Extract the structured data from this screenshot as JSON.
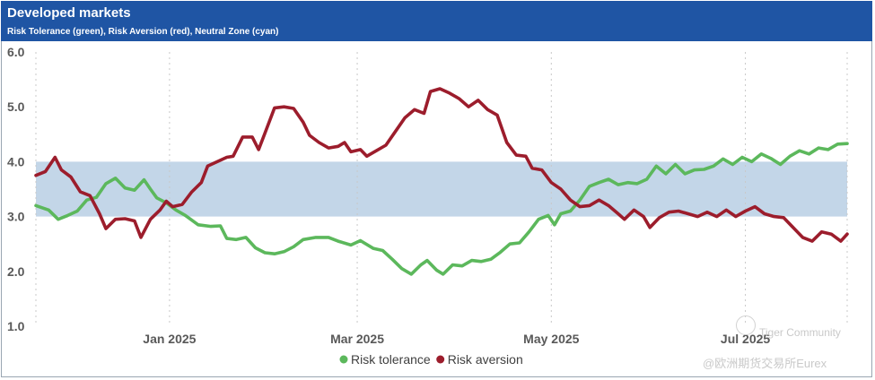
{
  "header": {
    "title": "Developed markets",
    "subtitle": "Risk Tolerance (green), Risk Aversion (red), Neutral Zone (cyan)"
  },
  "watermarks": {
    "community": "Tiger Community",
    "source": "@欧洲期货交易所Eurex"
  },
  "colors": {
    "header_bg": "#1f55a4",
    "tolerance": "#5cb85c",
    "aversion": "#9c1d2c",
    "neutral_band": "#c3d6e8"
  },
  "chart_data": {
    "type": "line",
    "title": "Developed markets",
    "subtitle": "Risk Tolerance (green), Risk Aversion (red), Neutral Zone (cyan)",
    "x_unit": "days since 2024-11-20",
    "xlim": [
      0,
      255
    ],
    "ylim": [
      1.0,
      6.0
    ],
    "yticks": [
      1.0,
      2.0,
      3.0,
      4.0,
      5.0,
      6.0
    ],
    "ytick_labels": [
      "1.0",
      "2.0",
      "3.0",
      "4.0",
      "5.0",
      "6.0"
    ],
    "xticks": [
      {
        "label": "Jan 2025",
        "x": 42
      },
      {
        "label": "Mar 2025",
        "x": 101
      },
      {
        "label": "May 2025",
        "x": 162
      },
      {
        "label": "Jul 2025",
        "x": 223
      }
    ],
    "neutral_zone": [
      3.0,
      4.0
    ],
    "grid": "vertical dotted",
    "legend": "bottom-center",
    "series": [
      {
        "name": "Risk tolerance",
        "color": "#5cb85c",
        "points": [
          [
            0,
            3.2
          ],
          [
            4,
            3.12
          ],
          [
            7,
            2.95
          ],
          [
            10,
            3.02
          ],
          [
            13,
            3.1
          ],
          [
            16,
            3.3
          ],
          [
            19,
            3.35
          ],
          [
            22,
            3.6
          ],
          [
            25,
            3.7
          ],
          [
            28,
            3.52
          ],
          [
            31,
            3.48
          ],
          [
            34,
            3.67
          ],
          [
            36,
            3.5
          ],
          [
            38,
            3.34
          ],
          [
            41,
            3.25
          ],
          [
            44,
            3.12
          ],
          [
            47,
            3.02
          ],
          [
            51,
            2.85
          ],
          [
            55,
            2.82
          ],
          [
            58,
            2.83
          ],
          [
            60,
            2.6
          ],
          [
            63,
            2.58
          ],
          [
            66,
            2.62
          ],
          [
            69,
            2.43
          ],
          [
            72,
            2.34
          ],
          [
            75,
            2.32
          ],
          [
            78,
            2.36
          ],
          [
            81,
            2.45
          ],
          [
            84,
            2.58
          ],
          [
            88,
            2.62
          ],
          [
            92,
            2.62
          ],
          [
            95,
            2.55
          ],
          [
            99,
            2.48
          ],
          [
            102,
            2.56
          ],
          [
            106,
            2.42
          ],
          [
            109,
            2.38
          ],
          [
            112,
            2.22
          ],
          [
            115,
            2.05
          ],
          [
            118,
            1.95
          ],
          [
            121,
            2.12
          ],
          [
            123,
            2.2
          ],
          [
            126,
            2.02
          ],
          [
            128,
            1.95
          ],
          [
            131,
            2.12
          ],
          [
            134,
            2.1
          ],
          [
            137,
            2.2
          ],
          [
            140,
            2.18
          ],
          [
            143,
            2.22
          ],
          [
            146,
            2.35
          ],
          [
            149,
            2.5
          ],
          [
            152,
            2.52
          ],
          [
            155,
            2.72
          ],
          [
            158,
            2.95
          ],
          [
            161,
            3.02
          ],
          [
            163,
            2.85
          ],
          [
            165,
            3.05
          ],
          [
            168,
            3.1
          ],
          [
            171,
            3.3
          ],
          [
            174,
            3.55
          ],
          [
            177,
            3.62
          ],
          [
            180,
            3.68
          ],
          [
            183,
            3.58
          ],
          [
            186,
            3.62
          ],
          [
            189,
            3.6
          ],
          [
            192,
            3.68
          ],
          [
            195,
            3.92
          ],
          [
            198,
            3.78
          ],
          [
            201,
            3.95
          ],
          [
            204,
            3.78
          ],
          [
            207,
            3.85
          ],
          [
            210,
            3.86
          ],
          [
            213,
            3.92
          ],
          [
            216,
            4.05
          ],
          [
            219,
            3.95
          ],
          [
            222,
            4.08
          ],
          [
            225,
            4.0
          ],
          [
            228,
            4.14
          ],
          [
            231,
            4.06
          ],
          [
            234,
            3.95
          ],
          [
            237,
            4.1
          ],
          [
            240,
            4.2
          ],
          [
            243,
            4.14
          ],
          [
            246,
            4.25
          ],
          [
            249,
            4.22
          ],
          [
            252,
            4.32
          ],
          [
            255,
            4.33
          ]
        ]
      },
      {
        "name": "Risk aversion",
        "color": "#9c1d2c",
        "points": [
          [
            0,
            3.75
          ],
          [
            3,
            3.82
          ],
          [
            6,
            4.08
          ],
          [
            8,
            3.85
          ],
          [
            11,
            3.72
          ],
          [
            14,
            3.45
          ],
          [
            17,
            3.38
          ],
          [
            20,
            3.05
          ],
          [
            22,
            2.78
          ],
          [
            25,
            2.95
          ],
          [
            28,
            2.96
          ],
          [
            31,
            2.92
          ],
          [
            33,
            2.62
          ],
          [
            36,
            2.95
          ],
          [
            39,
            3.12
          ],
          [
            41,
            3.28
          ],
          [
            43,
            3.18
          ],
          [
            46,
            3.22
          ],
          [
            49,
            3.45
          ],
          [
            52,
            3.62
          ],
          [
            54,
            3.92
          ],
          [
            57,
            4.0
          ],
          [
            60,
            4.08
          ],
          [
            62,
            4.1
          ],
          [
            65,
            4.45
          ],
          [
            68,
            4.45
          ],
          [
            70,
            4.22
          ],
          [
            72,
            4.52
          ],
          [
            75,
            4.98
          ],
          [
            78,
            5.0
          ],
          [
            81,
            4.97
          ],
          [
            84,
            4.72
          ],
          [
            86,
            4.48
          ],
          [
            89,
            4.35
          ],
          [
            92,
            4.25
          ],
          [
            95,
            4.28
          ],
          [
            97,
            4.35
          ],
          [
            99,
            4.18
          ],
          [
            102,
            4.22
          ],
          [
            104,
            4.1
          ],
          [
            107,
            4.2
          ],
          [
            110,
            4.3
          ],
          [
            113,
            4.55
          ],
          [
            116,
            4.8
          ],
          [
            119,
            4.95
          ],
          [
            122,
            4.88
          ],
          [
            124,
            5.28
          ],
          [
            127,
            5.33
          ],
          [
            130,
            5.25
          ],
          [
            133,
            5.15
          ],
          [
            136,
            5.0
          ],
          [
            139,
            5.12
          ],
          [
            142,
            4.95
          ],
          [
            145,
            4.85
          ],
          [
            148,
            4.35
          ],
          [
            151,
            4.12
          ],
          [
            154,
            4.1
          ],
          [
            156,
            3.88
          ],
          [
            159,
            3.85
          ],
          [
            162,
            3.62
          ],
          [
            165,
            3.5
          ],
          [
            168,
            3.3
          ],
          [
            171,
            3.18
          ],
          [
            174,
            3.2
          ],
          [
            177,
            3.3
          ],
          [
            180,
            3.2
          ],
          [
            183,
            3.05
          ],
          [
            185,
            2.95
          ],
          [
            188,
            3.12
          ],
          [
            191,
            3.0
          ],
          [
            193,
            2.8
          ],
          [
            196,
            2.98
          ],
          [
            199,
            3.08
          ],
          [
            202,
            3.1
          ],
          [
            205,
            3.05
          ],
          [
            208,
            3.0
          ],
          [
            211,
            3.08
          ],
          [
            214,
            3.0
          ],
          [
            217,
            3.12
          ],
          [
            220,
            3.0
          ],
          [
            223,
            3.1
          ],
          [
            226,
            3.18
          ],
          [
            229,
            3.05
          ],
          [
            232,
            3.0
          ],
          [
            235,
            2.98
          ],
          [
            238,
            2.8
          ],
          [
            241,
            2.62
          ],
          [
            244,
            2.55
          ],
          [
            247,
            2.72
          ],
          [
            250,
            2.68
          ],
          [
            253,
            2.55
          ],
          [
            255,
            2.68
          ]
        ]
      }
    ]
  }
}
